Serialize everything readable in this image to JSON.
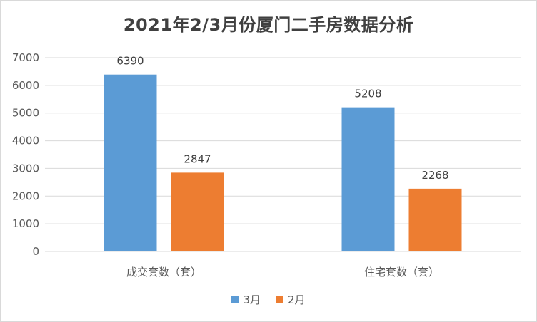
{
  "chart_data": {
    "type": "bar",
    "title": "2021年2/3月份厦门二手房数据分析",
    "categories": [
      "成交套数（套）",
      "住宅套数（套）"
    ],
    "series": [
      {
        "name": "3月",
        "values": [
          6390,
          5208
        ],
        "color": "#5b9bd5"
      },
      {
        "name": "2月",
        "values": [
          2847,
          2268
        ],
        "color": "#ed7d31"
      }
    ],
    "ylim": [
      0,
      7000
    ],
    "yticks": [
      0,
      1000,
      2000,
      3000,
      4000,
      5000,
      6000,
      7000
    ],
    "grid": true,
    "legend_position": "bottom"
  }
}
